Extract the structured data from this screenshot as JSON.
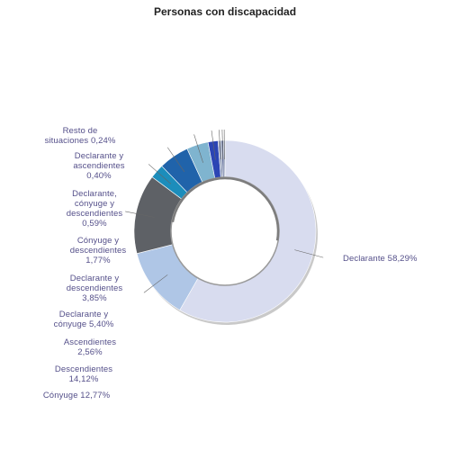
{
  "chart_data": {
    "type": "pie",
    "title": "Personas con discapacidad",
    "slices": [
      {
        "name": "Declarante",
        "value": 58.29,
        "label": "Declarante 58,29%",
        "color": "#d8dcef"
      },
      {
        "name": "Cónyuge",
        "value": 12.77,
        "label": "Cónyuge 12,77%",
        "color": "#afc6e6"
      },
      {
        "name": "Descendientes",
        "value": 14.12,
        "label": "Descendientes 14,12%",
        "color": "#5e6166"
      },
      {
        "name": "Ascendientes",
        "value": 2.56,
        "label": "Ascendientes 2,56%",
        "color": "#1c8dbb"
      },
      {
        "name": "Declarante y cónyuge",
        "value": 5.4,
        "label": "Declarante y cónyuge 5,40%",
        "color": "#2063aa"
      },
      {
        "name": "Declarante y descendientes",
        "value": 3.85,
        "label": "Declarante y descendientes 3,85%",
        "color": "#7fb4cf"
      },
      {
        "name": "Cónyuge y descendientes",
        "value": 1.77,
        "label": "Cónyuge y descendientes 1,77%",
        "color": "#2b45b4"
      },
      {
        "name": "Declarante, cónyuge y descendientes",
        "value": 0.59,
        "label": "Declarante, cónyuge y descendientes 0,59%",
        "color": "#9aa5bf"
      },
      {
        "name": "Declarante y ascendientes",
        "value": 0.4,
        "label": "Declarante y ascendientes 0,40%",
        "color": "#4a5a8c"
      },
      {
        "name": "Resto de situaciones",
        "value": 0.24,
        "label": "Resto de situaciones 0,24%",
        "color": "#6e7f9e"
      }
    ]
  }
}
